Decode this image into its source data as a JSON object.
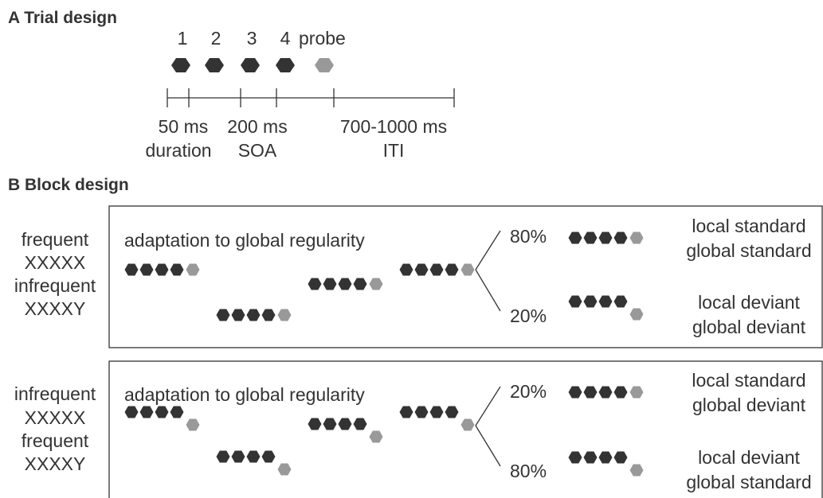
{
  "colors": {
    "standard_tone": "#333333",
    "probe_tone": "#999999",
    "line": "#333333"
  },
  "icons": {
    "tone": "hexagon-tone-icon"
  },
  "panel_a": {
    "heading": "A Trial design",
    "tone_labels": [
      "1",
      "2",
      "3",
      "4"
    ],
    "probe_label": "probe",
    "timeline": {
      "duration_value": "50 ms",
      "duration_label": "duration",
      "soa_value": "200 ms",
      "soa_label": "SOA",
      "iti_value": "700-1000 ms",
      "iti_label": "ITI"
    }
  },
  "panel_b": {
    "heading": "B Block design",
    "adaptation_label": "adaptation to global regularity",
    "blocks": [
      {
        "condition_lines": [
          "frequent",
          "XXXXX",
          "infrequent",
          "XXXXY"
        ],
        "branches": [
          {
            "percent": "80%",
            "probe": "XXXXX",
            "lines": [
              "local standard",
              "global standard"
            ]
          },
          {
            "percent": "20%",
            "probe": "XXXXY",
            "lines": [
              "local deviant",
              "global deviant"
            ]
          }
        ]
      },
      {
        "condition_lines": [
          "infrequent",
          "XXXXX",
          "frequent",
          "XXXXY"
        ],
        "branches": [
          {
            "percent": "20%",
            "probe": "XXXXX",
            "lines": [
              "local standard",
              "global deviant"
            ]
          },
          {
            "percent": "80%",
            "probe": "XXXXY",
            "lines": [
              "local deviant",
              "global standard"
            ]
          }
        ]
      }
    ]
  }
}
